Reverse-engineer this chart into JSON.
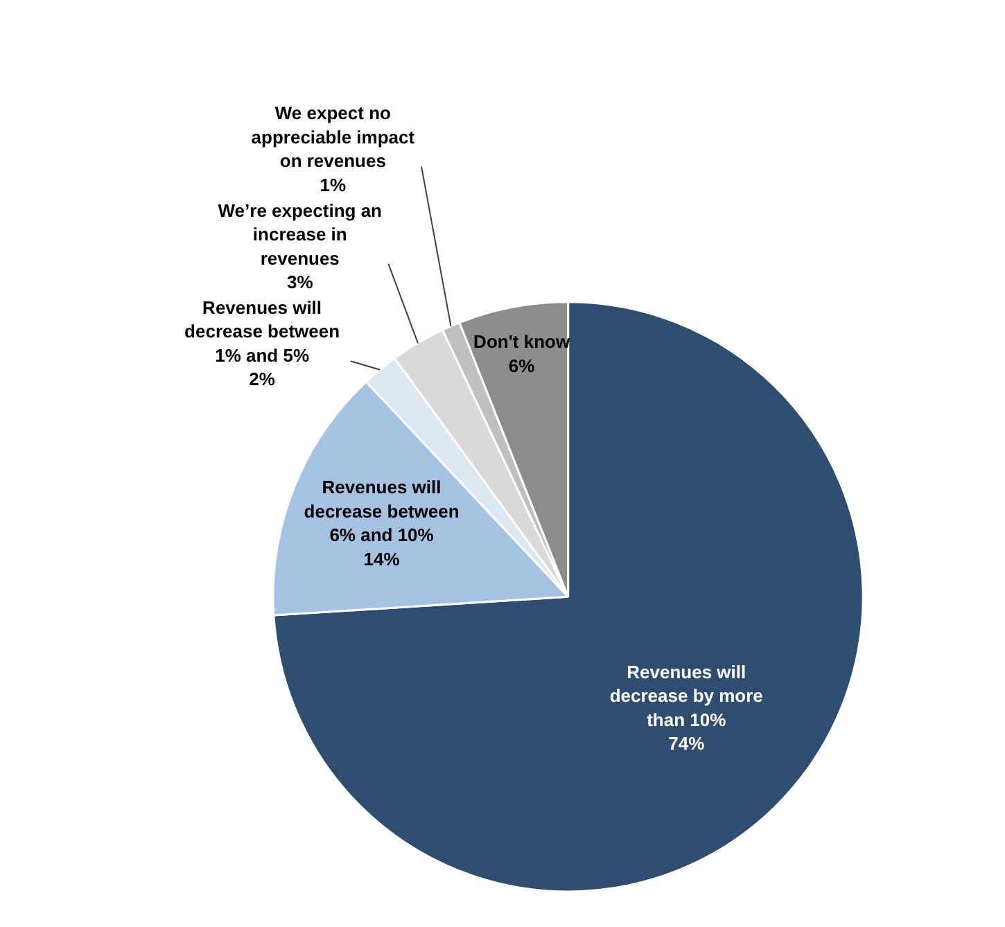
{
  "chart_data": {
    "type": "pie",
    "categories": [
      "Revenues will decrease by more than 10%",
      "Revenues will decrease between 6% and 10%",
      "Revenues will decrease between 1% and 5%",
      "We’re expecting an increase in revenues",
      "We expect no appreciable impact on revenues",
      "Don't know"
    ],
    "values": [
      74,
      14,
      2,
      3,
      1,
      6
    ],
    "colors": [
      "#2e4d6f",
      "#a6c2e2",
      "#dde7f2",
      "#d9d9d9",
      "#bfbfbf",
      "#8c8c8c"
    ],
    "value_labels": [
      "74%",
      "14%",
      "2%",
      "3%",
      "1%",
      "6%"
    ]
  }
}
